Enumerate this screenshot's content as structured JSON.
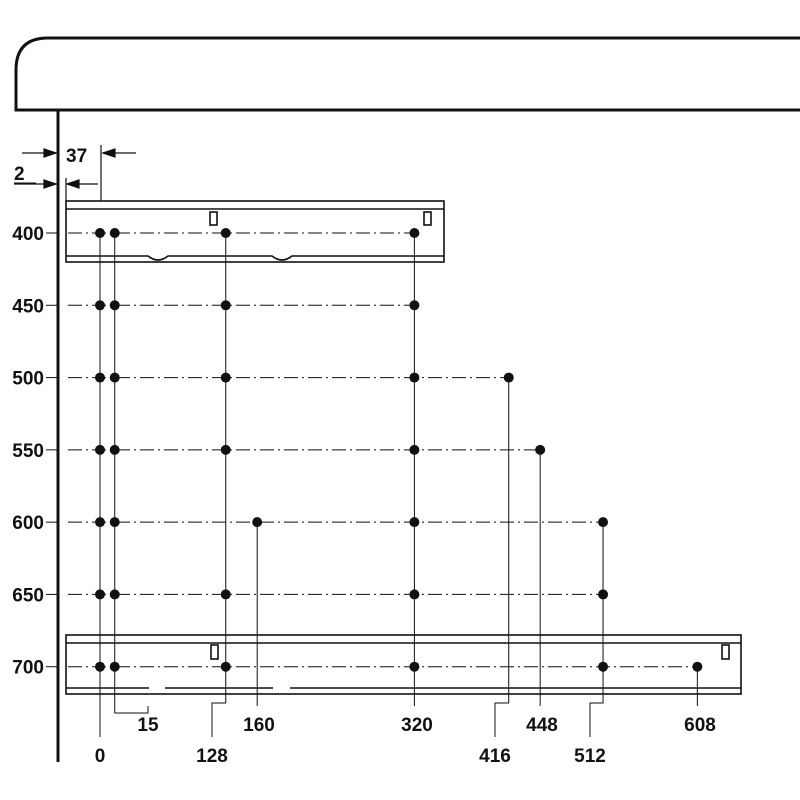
{
  "dimensions": {
    "offset_outer": "2",
    "offset_inner": "37"
  },
  "row_labels": [
    "400",
    "450",
    "500",
    "550",
    "600",
    "650",
    "700"
  ],
  "column_labels": [
    "0",
    "15",
    "128",
    "160",
    "320",
    "416",
    "448",
    "512",
    "608"
  ],
  "rows": [
    {
      "label": "400",
      "points": [
        0,
        15,
        128,
        320
      ]
    },
    {
      "label": "450",
      "points": [
        0,
        15,
        128,
        320
      ]
    },
    {
      "label": "500",
      "points": [
        0,
        15,
        128,
        320,
        416
      ]
    },
    {
      "label": "550",
      "points": [
        0,
        15,
        128,
        320,
        448
      ]
    },
    {
      "label": "600",
      "points": [
        0,
        15,
        160,
        320,
        512
      ]
    },
    {
      "label": "650",
      "points": [
        0,
        15,
        128,
        320,
        512
      ]
    },
    {
      "label": "700",
      "points": [
        0,
        15,
        128,
        320,
        512,
        608
      ]
    }
  ],
  "colors": {
    "ink": "#111111",
    "background": "#ffffff"
  }
}
